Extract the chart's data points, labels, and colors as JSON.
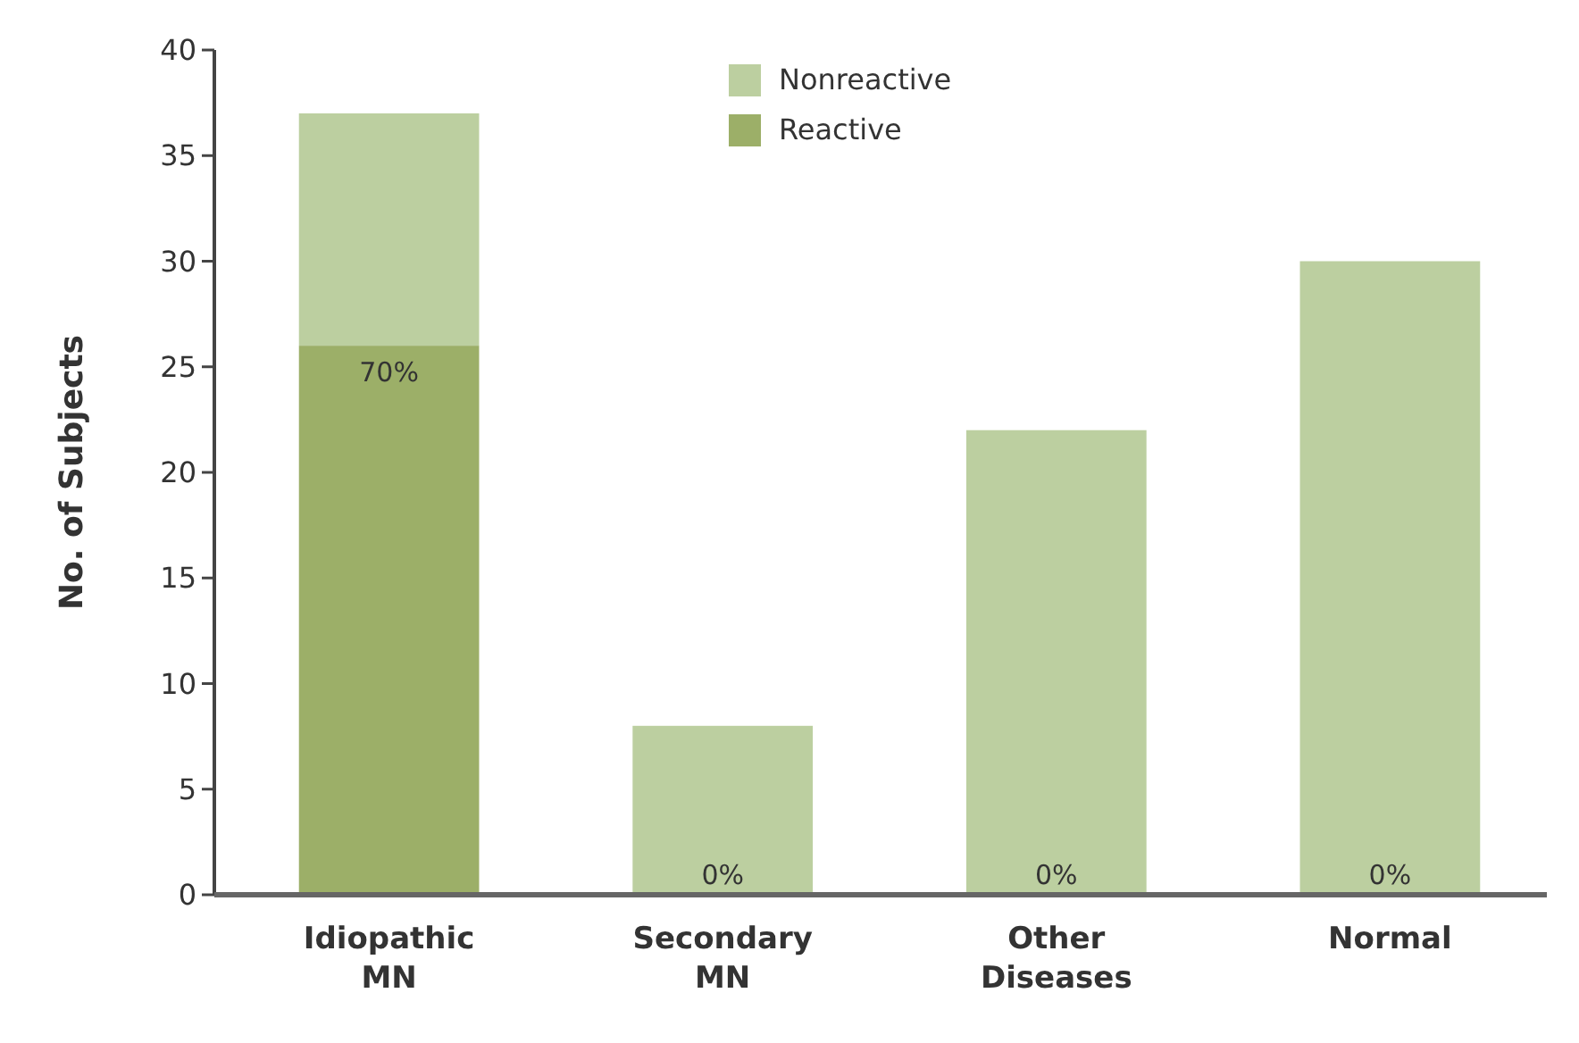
{
  "chart_data": {
    "type": "bar",
    "stacked": true,
    "ylabel": "No. of Subjects",
    "categories": [
      "Idiopathic MN",
      "Secondary MN",
      "Other Diseases",
      "Normal"
    ],
    "series": [
      {
        "name": "Reactive",
        "color": "#9caf68",
        "values": [
          26,
          0,
          0,
          0
        ]
      },
      {
        "name": "Nonreactive",
        "color": "#bccfa0",
        "values": [
          11,
          8,
          22,
          30
        ]
      }
    ],
    "annotations": [
      {
        "text": "70%",
        "x": "Idiopathic MN",
        "y": 26
      },
      {
        "text": "0%",
        "x": "Secondary MN",
        "y": 0
      },
      {
        "text": "0%",
        "x": "Other Diseases",
        "y": 0
      },
      {
        "text": "0%",
        "x": "Normal",
        "y": 0
      }
    ],
    "ylim": [
      0,
      40
    ],
    "yticks": [
      0,
      5,
      10,
      15,
      20,
      25,
      30,
      35,
      40
    ],
    "legend": "top",
    "grid": false
  }
}
